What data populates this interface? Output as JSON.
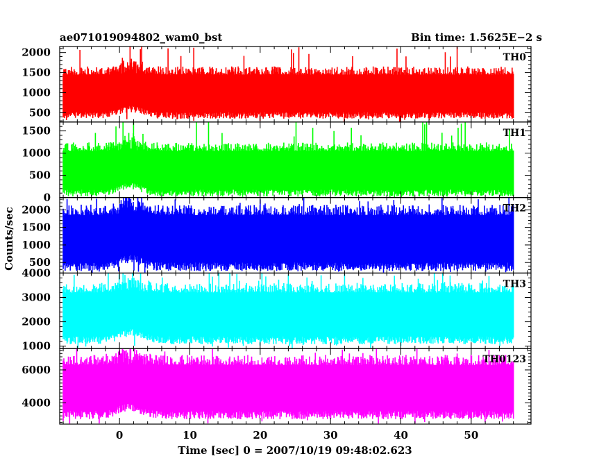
{
  "header": {
    "title": "ae071019094802_wam0_bst",
    "bin_time": "Bin time: 1.5625E−2 s"
  },
  "chart_data": {
    "type": "line",
    "title": "ae071019094802_wam0_bst",
    "xlabel": "Time [sec] 0 = 2007/10/19 09:48:02.623",
    "ylabel": "Counts/sec",
    "xlim": [
      -8.5,
      58.5
    ],
    "x_data_range": [
      -8.0,
      56.0
    ],
    "x_ticks": [
      0,
      10,
      20,
      30,
      40,
      50
    ],
    "grid": false,
    "legend": "none",
    "panels": [
      {
        "name": "TH0",
        "color": "#ff0000",
        "ylim": [
          270,
          2150
        ],
        "y_ticks": [
          500,
          1000,
          1500,
          2000
        ],
        "typical_range": [
          520,
          1450
        ],
        "mean": 980,
        "peaks": [
          {
            "x": 1.5,
            "value": 2150
          },
          {
            "x": 25.5,
            "value": 2130
          },
          {
            "x": 48.0,
            "value": 2140
          }
        ]
      },
      {
        "name": "TH1",
        "color": "#00ff00",
        "ylim": [
          0,
          1700
        ],
        "y_ticks": [
          0,
          500,
          1000,
          1500
        ],
        "typical_range": [
          180,
          1050
        ],
        "mean": 620,
        "peaks": [
          {
            "x": 0.5,
            "value": 1700
          },
          {
            "x": 2.0,
            "value": 1700
          },
          {
            "x": -0.5,
            "value": 1600
          }
        ]
      },
      {
        "name": "TH2",
        "color": "#0000ff",
        "ylim": [
          200,
          2350
        ],
        "y_ticks": [
          500,
          1000,
          1500,
          2000
        ],
        "typical_range": [
          500,
          1850
        ],
        "mean": 1150,
        "peaks": [
          {
            "x": 1.0,
            "value": 2350
          },
          {
            "x": 20.0,
            "value": 2300
          },
          {
            "x": 51.0,
            "value": 2300
          }
        ]
      },
      {
        "name": "TH3",
        "color": "#00ffff",
        "ylim": [
          900,
          4000
        ],
        "y_ticks": [
          1000,
          2000,
          3000,
          4000
        ],
        "typical_range": [
          1400,
          3200
        ],
        "mean": 2300,
        "peaks": [
          {
            "x": 3.0,
            "value": 4000
          },
          {
            "x": 32.0,
            "value": 3950
          },
          {
            "x": 47.0,
            "value": 3900
          }
        ]
      },
      {
        "name": "TH0123",
        "color": "#ff00ff",
        "ylim": [
          2700,
          7300
        ],
        "y_ticks": [
          4000,
          6000
        ],
        "typical_range": [
          3500,
          6300
        ],
        "mean": 4900,
        "peaks": [
          {
            "x": 0.0,
            "value": 7200
          },
          {
            "x": 1.5,
            "value": 7300
          },
          {
            "x": 48.0,
            "value": 7000
          }
        ]
      }
    ]
  }
}
